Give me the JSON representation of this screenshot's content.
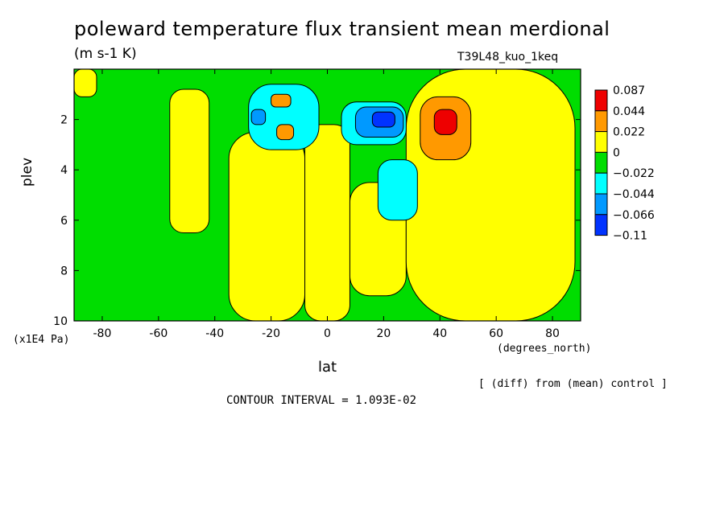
{
  "chart_data": {
    "type": "heatmap",
    "title": "poleward temperature flux transient mean merdional",
    "units": "(m s-1 K)",
    "run_label": "T39L48_kuo_1keq",
    "xlabel": "lat",
    "x_units": "(degrees_north)",
    "ylabel": "plev",
    "y_units": "(x1E4 Pa)",
    "xlim": [
      -90,
      90
    ],
    "ylim": [
      10,
      0
    ],
    "x_ticks": [
      "-80",
      "-60",
      "-40",
      "-20",
      "0",
      "20",
      "40",
      "60",
      "80"
    ],
    "x_tick_values": [
      -80,
      -60,
      -40,
      -20,
      0,
      20,
      40,
      60,
      80
    ],
    "y_ticks": [
      "2",
      "4",
      "6",
      "8",
      "10"
    ],
    "y_tick_values": [
      2,
      4,
      6,
      8,
      10
    ],
    "contour_interval_label": "CONTOUR INTERVAL = 1.093E-02",
    "note": "[ (diff) from (mean) control ]",
    "colorbar": {
      "labels": [
        "0.087",
        "0.044",
        "0.022",
        "0",
        "−0.022",
        "−0.044",
        "−0.066",
        "−0.11"
      ],
      "colors": [
        "#ee0000",
        "#ff9900",
        "#ffff00",
        "#00dd00",
        "#00ffff",
        "#0099ff",
        "#0033ff",
        "#0000cc"
      ]
    },
    "regions": [
      {
        "level": "0",
        "color": "#00dd00",
        "lat_range": [
          -90,
          90
        ],
        "plev_range": [
          0,
          10
        ],
        "note": "background"
      },
      {
        "level": "0.022",
        "color": "#ffff00",
        "lat_range": [
          -90,
          -82
        ],
        "plev_range": [
          0,
          1.1
        ]
      },
      {
        "level": "0.022",
        "color": "#ffff00",
        "lat_range": [
          -56,
          -42
        ],
        "plev_range": [
          0.8,
          6.5
        ]
      },
      {
        "level": "0.022",
        "color": "#ffff00",
        "lat_range": [
          -35,
          -8
        ],
        "plev_range": [
          2.5,
          10
        ]
      },
      {
        "level": "0.022",
        "color": "#ffff00",
        "lat_range": [
          -8,
          8
        ],
        "plev_range": [
          2.2,
          10
        ]
      },
      {
        "level": "0.022",
        "color": "#ffff00",
        "lat_range": [
          8,
          28
        ],
        "plev_range": [
          4.5,
          9
        ]
      },
      {
        "level": "0.022",
        "color": "#ffff00",
        "lat_range": [
          28,
          88
        ],
        "plev_range": [
          0,
          10
        ]
      },
      {
        "level": "0.044",
        "color": "#ff9900",
        "lat_range": [
          33,
          51
        ],
        "plev_range": [
          1.1,
          3.6
        ]
      },
      {
        "level": "0.087",
        "color": "#ee0000",
        "lat_range": [
          38,
          46
        ],
        "plev_range": [
          1.6,
          2.6
        ]
      },
      {
        "level": "−0.022",
        "color": "#00ffff",
        "lat_range": [
          -28,
          -3
        ],
        "plev_range": [
          0.6,
          3.2
        ]
      },
      {
        "level": "−0.022",
        "color": "#00ffff",
        "lat_range": [
          5,
          28
        ],
        "plev_range": [
          1.3,
          3.0
        ]
      },
      {
        "level": "−0.022",
        "color": "#00ffff",
        "lat_range": [
          18,
          32
        ],
        "plev_range": [
          3.6,
          6.0
        ]
      },
      {
        "level": "−0.044",
        "color": "#0099ff",
        "lat_range": [
          -27,
          -22
        ],
        "plev_range": [
          1.6,
          2.2
        ]
      },
      {
        "level": "−0.044",
        "color": "#0099ff",
        "lat_range": [
          10,
          27
        ],
        "plev_range": [
          1.5,
          2.7
        ]
      },
      {
        "level": "−0.066",
        "color": "#0033ff",
        "lat_range": [
          16,
          24
        ],
        "plev_range": [
          1.7,
          2.3
        ]
      },
      {
        "level": "0.044",
        "color": "#ff9900",
        "lat_range": [
          -20,
          -13
        ],
        "plev_range": [
          1.0,
          1.5
        ]
      },
      {
        "level": "0.044",
        "color": "#ff9900",
        "lat_range": [
          -18,
          -12
        ],
        "plev_range": [
          2.2,
          2.8
        ]
      }
    ]
  }
}
